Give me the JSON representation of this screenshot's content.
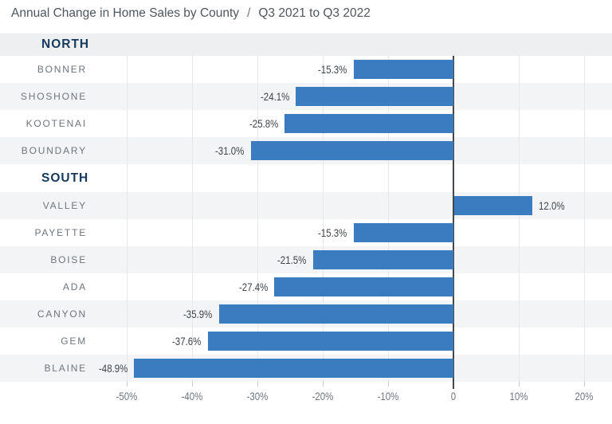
{
  "title": {
    "main": "Annual Change in Home Sales by County",
    "separator": "/",
    "period": "Q3 2021 to Q3 2022"
  },
  "colors": {
    "bar": "#3a7cbf",
    "row_shade": "#f2f4f5",
    "header_band": "#edeff1",
    "section_label": "#16395e",
    "county_label": "#6e757c",
    "value_label": "#3f454a",
    "gridline": "#e5e7e9",
    "tick": "#c6cacd",
    "zero_line": "#45494e",
    "axis_label": "#6e757c",
    "title_text": "#4f565c",
    "background": "#ffffff"
  },
  "chart_data": {
    "type": "bar",
    "orientation": "horizontal",
    "title": "Annual Change in Home Sales by County / Q3 2021 to Q3 2022",
    "xlabel": "",
    "ylabel": "",
    "unit": "%",
    "grid": true,
    "axis": {
      "min": -55,
      "max": 24,
      "ticks": [
        {
          "value": -50,
          "label": "-50%"
        },
        {
          "value": -40,
          "label": "-40%"
        },
        {
          "value": -30,
          "label": "-30%"
        },
        {
          "value": -20,
          "label": "-20%"
        },
        {
          "value": -10,
          "label": "-10%"
        },
        {
          "value": 0,
          "label": "0"
        },
        {
          "value": 10,
          "label": "10%"
        },
        {
          "value": 20,
          "label": "20%"
        }
      ]
    },
    "sections": [
      {
        "label": "NORTH",
        "counties": [
          {
            "name": "BONNER",
            "value": -15.3,
            "value_label": "-15.3%"
          },
          {
            "name": "SHOSHONE",
            "value": -24.1,
            "value_label": "-24.1%"
          },
          {
            "name": "KOOTENAI",
            "value": -25.8,
            "value_label": "-25.8%"
          },
          {
            "name": "BOUNDARY",
            "value": -31.0,
            "value_label": "-31.0%"
          }
        ]
      },
      {
        "label": "SOUTH",
        "counties": [
          {
            "name": "VALLEY",
            "value": 12.0,
            "value_label": "12.0%"
          },
          {
            "name": "PAYETTE",
            "value": -15.3,
            "value_label": "-15.3%"
          },
          {
            "name": "BOISE",
            "value": -21.5,
            "value_label": "-21.5%"
          },
          {
            "name": "ADA",
            "value": -27.4,
            "value_label": "-27.4%"
          },
          {
            "name": "CANYON",
            "value": -35.9,
            "value_label": "-35.9%"
          },
          {
            "name": "GEM",
            "value": -37.6,
            "value_label": "-37.6%"
          },
          {
            "name": "BLAINE",
            "value": -48.9,
            "value_label": "-48.9%"
          }
        ]
      }
    ]
  }
}
